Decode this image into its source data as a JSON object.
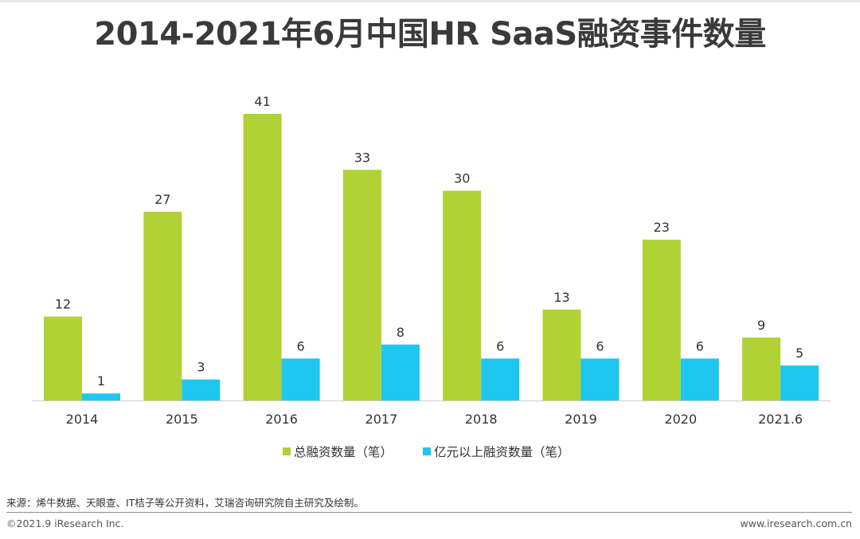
{
  "page": {
    "title": "2014-2021年6月中国HR SaaS融资事件数量",
    "source": "来源：烯牛数据、天眼查、IT桔子等公开资料，艾瑞咨询研究院自主研究及绘制。",
    "copyright": "©2021.9 iResearch Inc.",
    "website": "www.iresearch.com.cn"
  },
  "chart_data": {
    "type": "bar",
    "categories": [
      "2014",
      "2015",
      "2016",
      "2017",
      "2018",
      "2019",
      "2020",
      "2021.6"
    ],
    "series": [
      {
        "name": "总融资数量（笔）",
        "color": "#b1d234",
        "values": [
          12,
          27,
          41,
          33,
          30,
          13,
          23,
          9
        ]
      },
      {
        "name": "亿元以上融资数量（笔）",
        "color": "#1fc7ef",
        "values": [
          1,
          3,
          6,
          8,
          6,
          6,
          6,
          5
        ]
      }
    ],
    "ylim": [
      0,
      41
    ],
    "grid": false,
    "legend_position": "bottom-center",
    "data_labels": true
  }
}
